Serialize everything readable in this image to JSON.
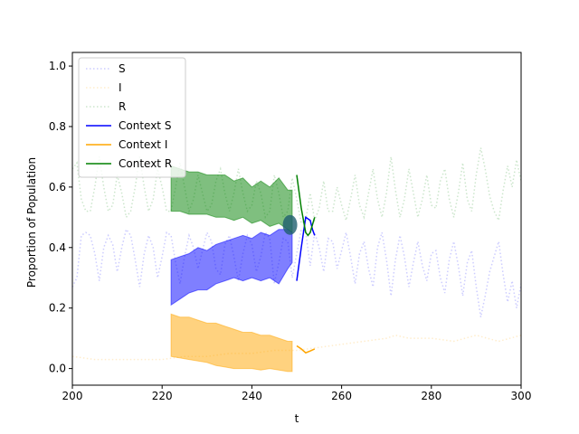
{
  "chart_data": {
    "type": "line",
    "title": "",
    "xlabel": "t",
    "ylabel": "Proportion of Population",
    "xlim": [
      200,
      300
    ],
    "ylim": [
      -0.055,
      1.045
    ],
    "xticks": [
      200,
      220,
      240,
      260,
      280,
      300
    ],
    "yticks": [
      0.0,
      0.2,
      0.4,
      0.6,
      0.8,
      1.0
    ],
    "legend_position": "upper-left",
    "grid": false,
    "series": [
      {
        "name": "S",
        "style": "dotted",
        "color": "#0000ff",
        "opacity": 0.2,
        "x": [
          200,
          201,
          202,
          203,
          204,
          205,
          206,
          207,
          208,
          209,
          210,
          211,
          212,
          213,
          214,
          215,
          216,
          217,
          218,
          219,
          220,
          221,
          222,
          223,
          224,
          225,
          226,
          227,
          228,
          229,
          230,
          231,
          232,
          233,
          234,
          235,
          236,
          237,
          238,
          239,
          240,
          241,
          242,
          243,
          244,
          245,
          246,
          247,
          248,
          249,
          250,
          251,
          252,
          253,
          254,
          255,
          256,
          257,
          258,
          259,
          260,
          261,
          262,
          263,
          264,
          265,
          266,
          267,
          268,
          269,
          270,
          271,
          272,
          273,
          274,
          275,
          276,
          277,
          278,
          279,
          280,
          281,
          282,
          283,
          284,
          285,
          286,
          287,
          288,
          289,
          290,
          291,
          292,
          293,
          294,
          295,
          296,
          297,
          298,
          299,
          300
        ],
        "y": [
          0.27,
          0.3,
          0.44,
          0.45,
          0.44,
          0.38,
          0.29,
          0.4,
          0.44,
          0.41,
          0.32,
          0.4,
          0.46,
          0.44,
          0.36,
          0.27,
          0.38,
          0.44,
          0.4,
          0.3,
          0.37,
          0.45,
          0.44,
          0.35,
          0.28,
          0.37,
          0.44,
          0.4,
          0.33,
          0.39,
          0.45,
          0.42,
          0.33,
          0.31,
          0.41,
          0.44,
          0.37,
          0.29,
          0.38,
          0.44,
          0.41,
          0.32,
          0.37,
          0.45,
          0.43,
          0.28,
          0.35,
          0.43,
          0.42,
          0.3,
          0.38,
          0.46,
          0.45,
          0.34,
          0.45,
          0.4,
          0.32,
          0.43,
          0.42,
          0.33,
          0.39,
          0.45,
          0.37,
          0.28,
          0.38,
          0.42,
          0.33,
          0.27,
          0.4,
          0.45,
          0.36,
          0.24,
          0.36,
          0.44,
          0.37,
          0.27,
          0.35,
          0.42,
          0.34,
          0.29,
          0.38,
          0.39,
          0.3,
          0.25,
          0.36,
          0.42,
          0.34,
          0.24,
          0.35,
          0.39,
          0.27,
          0.17,
          0.24,
          0.32,
          0.37,
          0.42,
          0.31,
          0.22,
          0.29,
          0.2,
          0.28
        ]
      },
      {
        "name": "I",
        "style": "dotted",
        "color": "#ffa500",
        "opacity": 0.2,
        "x": [
          200,
          205,
          210,
          215,
          220,
          225,
          230,
          235,
          240,
          245,
          250,
          255,
          260,
          265,
          270,
          272,
          275,
          280,
          285,
          290,
          295,
          300
        ],
        "y": [
          0.04,
          0.03,
          0.03,
          0.03,
          0.03,
          0.04,
          0.04,
          0.05,
          0.05,
          0.06,
          0.06,
          0.07,
          0.08,
          0.09,
          0.1,
          0.11,
          0.1,
          0.1,
          0.09,
          0.11,
          0.09,
          0.11
        ]
      },
      {
        "name": "R",
        "style": "dotted",
        "color": "#008000",
        "opacity": 0.2,
        "x": [
          200,
          201,
          202,
          203,
          204,
          205,
          206,
          207,
          208,
          209,
          210,
          211,
          212,
          213,
          214,
          215,
          216,
          217,
          218,
          219,
          220,
          221,
          222,
          223,
          224,
          225,
          226,
          227,
          228,
          229,
          230,
          231,
          232,
          233,
          234,
          235,
          236,
          237,
          238,
          239,
          240,
          241,
          242,
          243,
          244,
          245,
          246,
          247,
          248,
          249,
          250,
          251,
          252,
          253,
          254,
          255,
          256,
          257,
          258,
          259,
          260,
          261,
          262,
          263,
          264,
          265,
          266,
          267,
          268,
          269,
          270,
          271,
          272,
          273,
          274,
          275,
          276,
          277,
          278,
          279,
          280,
          281,
          282,
          283,
          284,
          285,
          286,
          287,
          288,
          289,
          290,
          291,
          292,
          293,
          294,
          295,
          296,
          297,
          298,
          299,
          300
        ],
        "y": [
          0.66,
          0.68,
          0.56,
          0.52,
          0.52,
          0.6,
          0.7,
          0.6,
          0.52,
          0.54,
          0.64,
          0.58,
          0.5,
          0.52,
          0.6,
          0.7,
          0.6,
          0.52,
          0.56,
          0.66,
          0.6,
          0.52,
          0.52,
          0.6,
          0.68,
          0.6,
          0.52,
          0.56,
          0.64,
          0.58,
          0.52,
          0.54,
          0.62,
          0.66,
          0.58,
          0.52,
          0.58,
          0.66,
          0.58,
          0.52,
          0.54,
          0.62,
          0.58,
          0.5,
          0.52,
          0.64,
          0.58,
          0.5,
          0.52,
          0.63,
          0.56,
          0.48,
          0.49,
          0.58,
          0.49,
          0.53,
          0.62,
          0.52,
          0.52,
          0.6,
          0.54,
          0.49,
          0.56,
          0.64,
          0.54,
          0.5,
          0.58,
          0.66,
          0.56,
          0.5,
          0.58,
          0.7,
          0.59,
          0.5,
          0.56,
          0.66,
          0.58,
          0.5,
          0.56,
          0.64,
          0.54,
          0.53,
          0.62,
          0.66,
          0.56,
          0.5,
          0.58,
          0.68,
          0.56,
          0.52,
          0.64,
          0.73,
          0.66,
          0.57,
          0.52,
          0.49,
          0.59,
          0.67,
          0.6,
          0.69,
          0.62
        ]
      },
      {
        "name": "Context S",
        "style": "solid",
        "color": "#0000ff",
        "x": [
          250,
          251,
          252,
          253,
          253.5,
          254
        ],
        "y": [
          0.29,
          0.4,
          0.5,
          0.49,
          0.46,
          0.44
        ]
      },
      {
        "name": "Context I",
        "style": "solid",
        "color": "#ffa500",
        "x": [
          250,
          251,
          252,
          253,
          254
        ],
        "y": [
          0.075,
          0.065,
          0.052,
          0.058,
          0.065
        ]
      },
      {
        "name": "Context R",
        "style": "solid",
        "color": "#008000",
        "x": [
          250,
          251,
          252,
          252.5,
          253,
          254
        ],
        "y": [
          0.64,
          0.53,
          0.45,
          0.44,
          0.45,
          0.5
        ]
      }
    ],
    "bands": [
      {
        "color": "#0000ff",
        "opacity": 0.5,
        "x": [
          222,
          224,
          226,
          228,
          230,
          232,
          234,
          236,
          238,
          240,
          242,
          244,
          246,
          248,
          249
        ],
        "lower": [
          0.21,
          0.23,
          0.25,
          0.26,
          0.26,
          0.28,
          0.29,
          0.3,
          0.29,
          0.3,
          0.29,
          0.3,
          0.28,
          0.33,
          0.35
        ],
        "upper": [
          0.36,
          0.37,
          0.38,
          0.4,
          0.39,
          0.41,
          0.42,
          0.43,
          0.44,
          0.43,
          0.45,
          0.44,
          0.46,
          0.46,
          0.45
        ]
      },
      {
        "color": "#ffa500",
        "opacity": 0.5,
        "x": [
          222,
          224,
          226,
          228,
          230,
          232,
          234,
          236,
          238,
          240,
          242,
          244,
          246,
          248,
          249
        ],
        "lower": [
          0.04,
          0.035,
          0.03,
          0.025,
          0.02,
          0.01,
          0.005,
          0.0,
          0.0,
          0.0,
          -0.005,
          0.0,
          -0.005,
          -0.01,
          -0.01
        ],
        "upper": [
          0.18,
          0.17,
          0.17,
          0.16,
          0.15,
          0.15,
          0.14,
          0.13,
          0.12,
          0.12,
          0.11,
          0.11,
          0.1,
          0.09,
          0.09
        ]
      },
      {
        "color": "#008000",
        "opacity": 0.5,
        "x": [
          222,
          224,
          226,
          228,
          230,
          232,
          234,
          236,
          238,
          240,
          242,
          244,
          246,
          248,
          249
        ],
        "lower": [
          0.52,
          0.52,
          0.51,
          0.51,
          0.51,
          0.5,
          0.5,
          0.49,
          0.5,
          0.48,
          0.49,
          0.47,
          0.48,
          0.46,
          0.45
        ],
        "upper": [
          0.67,
          0.66,
          0.65,
          0.65,
          0.64,
          0.64,
          0.64,
          0.62,
          0.63,
          0.6,
          0.62,
          0.6,
          0.63,
          0.59,
          0.59
        ]
      }
    ],
    "annotation_circle": {
      "x": 248.5,
      "y": 0.475,
      "color": "#1f5f6f"
    }
  }
}
